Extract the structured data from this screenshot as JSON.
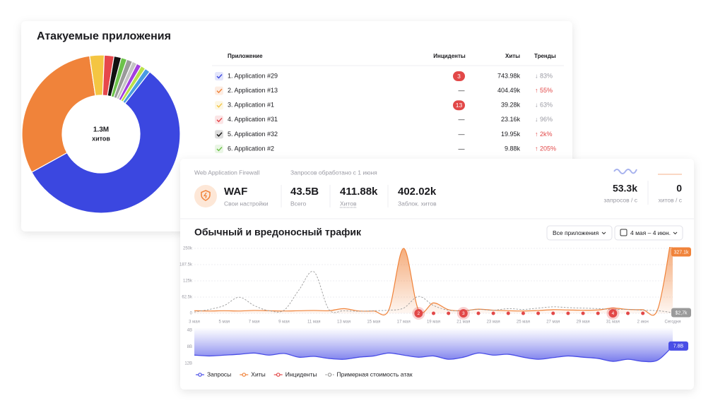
{
  "apps": {
    "title": "Атакуемые приложения",
    "donut": {
      "type": "pie",
      "center_value": "1.3M",
      "center_label": "хитов",
      "values": [
        57,
        31,
        3,
        2,
        1.5,
        1.2,
        1.2,
        1,
        1,
        1,
        1.1
      ],
      "colors": [
        "#3b47e0",
        "#f0833a",
        "#f4c542",
        "#e6474b",
        "#111111",
        "#6cc24a",
        "#9a9a9a",
        "#c4c4c4",
        "#a33fe0",
        "#b9e04a",
        "#4a9be3"
      ]
    },
    "table": {
      "headers": [
        "Приложение",
        "Инциденты",
        "Хиты",
        "Тренды"
      ],
      "rows": [
        {
          "name": "1. Application #29",
          "incidents": "3",
          "incidents_badge": true,
          "hits": "743.98k",
          "trend": "↓ 83%",
          "trend_up": false
        },
        {
          "name": "2. Application #13",
          "incidents": "—",
          "incidents_badge": false,
          "hits": "404.49k",
          "trend": "↑ 55%",
          "trend_up": true
        },
        {
          "name": "3. Application #1",
          "incidents": "13",
          "incidents_badge": true,
          "hits": "39.28k",
          "trend": "↓ 63%",
          "trend_up": false
        },
        {
          "name": "4. Application #31",
          "incidents": "—",
          "incidents_badge": false,
          "hits": "23.16k",
          "trend": "↓ 96%",
          "trend_up": false
        },
        {
          "name": "5. Application #32",
          "incidents": "—",
          "incidents_badge": false,
          "hits": "19.95k",
          "trend": "↑ 2k%",
          "trend_up": true
        },
        {
          "name": "6. Application #2",
          "incidents": "—",
          "incidents_badge": false,
          "hits": "9.88k",
          "trend": "↑ 205%",
          "trend_up": true
        }
      ]
    }
  },
  "waf": {
    "product_label": "Web Application Firewall",
    "requests_label": "Запросов обработано с 1 июня",
    "name": "WAF",
    "settings": "Свои настройки",
    "stats": [
      {
        "value": "43.5B",
        "label": "Всего"
      },
      {
        "value": "411.88k",
        "label": "Хитов"
      },
      {
        "value": "402.02k",
        "label": "Заблок. хитов"
      }
    ],
    "rates": [
      {
        "value": "53.3k",
        "label": "запросов / с"
      },
      {
        "value": "0",
        "label": "хитов / с"
      }
    ],
    "chart_title": "Обычный и вредоносный трафик",
    "filters": [
      "Все приложения",
      "4 мая – 4 июн."
    ]
  },
  "chart_data": [
    {
      "type": "line",
      "categories": [
        "3 мая",
        null,
        "5 мая",
        null,
        "7 мая",
        null,
        "9 мая",
        null,
        "11 мая",
        null,
        "13 мая",
        null,
        "15 мая",
        null,
        "17 мая",
        null,
        "19 мая",
        null,
        "21 мая",
        null,
        "23 мая",
        null,
        "25 мая",
        null,
        "27 мая",
        null,
        "29 мая",
        null,
        "31 мая",
        null,
        "2 июн",
        null,
        "Сегодня"
      ],
      "ylim": [
        0,
        250
      ],
      "yticks": [
        0,
        {
          "value": 62.5,
          "label": "62.5k"
        },
        {
          "value": 125,
          "label": "125k"
        },
        {
          "value": 187.5,
          "label": "187.5k"
        },
        {
          "value": 250,
          "label": "250k"
        }
      ],
      "grid": true,
      "series": [
        {
          "name": "Хиты",
          "color": "#f0833a",
          "style": "area",
          "values": [
            10,
            9,
            10,
            9,
            11,
            10,
            9,
            10,
            11,
            10,
            18,
            9,
            9,
            12,
            250,
            12,
            40,
            14,
            10,
            16,
            12,
            10,
            9,
            11,
            14,
            13,
            12,
            13,
            20,
            15,
            14,
            16,
            327.1
          ],
          "value_labels": [
            null,
            null,
            null,
            null,
            null,
            null,
            null,
            null,
            null,
            null,
            null,
            null,
            null,
            null,
            null,
            null,
            null,
            null,
            null,
            null,
            null,
            null,
            null,
            null,
            null,
            null,
            null,
            null,
            null,
            null,
            null,
            null,
            "327.1k"
          ]
        },
        {
          "name": "Инциденты",
          "color": "#e24848",
          "style": "markers",
          "values": [
            null,
            null,
            null,
            null,
            null,
            null,
            null,
            null,
            null,
            null,
            null,
            null,
            null,
            null,
            null,
            2,
            1,
            1,
            3,
            1,
            1,
            1,
            1,
            1,
            1,
            1,
            1,
            1,
            4,
            1,
            1,
            null,
            null
          ],
          "value_labels": [
            null,
            null,
            null,
            null,
            null,
            null,
            null,
            null,
            null,
            null,
            null,
            null,
            null,
            null,
            null,
            "2",
            null,
            null,
            "3",
            null,
            null,
            null,
            null,
            null,
            null,
            null,
            null,
            null,
            "4",
            null,
            null,
            null,
            null
          ]
        },
        {
          "name": "Примерная стоимость атак",
          "color": "#9a9a9a",
          "style": "dashed",
          "values": [
            5,
            15,
            30,
            62,
            30,
            10,
            12,
            90,
            160,
            15,
            10,
            8,
            10,
            12,
            20,
            65,
            30,
            12,
            10,
            15,
            12,
            18,
            15,
            20,
            25,
            22,
            20,
            18,
            15,
            15,
            12,
            10,
            2.7
          ],
          "value_labels": [
            null,
            null,
            null,
            null,
            null,
            null,
            null,
            null,
            null,
            null,
            null,
            null,
            null,
            null,
            null,
            null,
            null,
            null,
            null,
            null,
            null,
            null,
            null,
            null,
            null,
            null,
            null,
            null,
            null,
            null,
            null,
            null,
            "$2,7k"
          ]
        }
      ]
    },
    {
      "type": "area",
      "inverted": true,
      "ylim": [
        4,
        12
      ],
      "yticks": [
        {
          "value": 4,
          "label": "4B"
        },
        {
          "value": 8,
          "label": "8B"
        },
        {
          "value": 12,
          "label": "12B"
        }
      ],
      "series": [
        {
          "name": "Запросы",
          "color": "#4a4ee6",
          "values": [
            10,
            10.2,
            10,
            9.8,
            9.5,
            10,
            9.6,
            10.5,
            10.3,
            10.8,
            11,
            10.5,
            10.2,
            9.5,
            10,
            10.5,
            10.2,
            11,
            10.5,
            9.5,
            10,
            9.8,
            10.5,
            11,
            10.6,
            10.2,
            10.5,
            10.8,
            11.5,
            11,
            11.5,
            11.2,
            7.8
          ],
          "value_labels": [
            null,
            null,
            null,
            null,
            null,
            null,
            null,
            null,
            null,
            null,
            null,
            null,
            null,
            null,
            null,
            null,
            null,
            null,
            null,
            null,
            null,
            null,
            null,
            null,
            null,
            null,
            null,
            null,
            null,
            null,
            null,
            null,
            "7.8B"
          ]
        }
      ]
    }
  ]
}
